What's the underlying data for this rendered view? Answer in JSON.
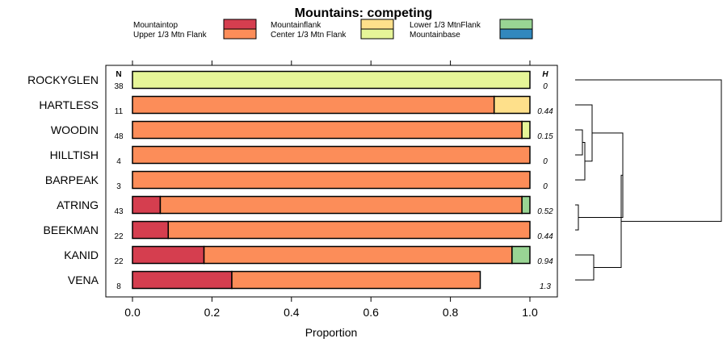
{
  "chart_data": {
    "type": "bar",
    "stacked": true,
    "orientation": "horizontal",
    "title": "Mountains: competing",
    "xlabel": "Proportion",
    "xlim": [
      0,
      1
    ],
    "xticks": [
      "0.0",
      "0.2",
      "0.4",
      "0.6",
      "0.8",
      "1.0"
    ],
    "column_headers": {
      "n": "N",
      "h": "H"
    },
    "legend": [
      {
        "label": "Mountaintop",
        "color": "#d53e4f"
      },
      {
        "label": "Upper 1/3 Mtn Flank",
        "color": "#fc8d59"
      },
      {
        "label": "Mountainflank",
        "color": "#fee08b"
      },
      {
        "label": "Center 1/3 Mtn Flank",
        "color": "#e6f598"
      },
      {
        "label": "Lower 1/3 MtnFlank",
        "color": "#99d594"
      },
      {
        "label": "Mountainbase",
        "color": "#3288bd"
      }
    ],
    "categories": [
      "ROCKYGLEN",
      "HARTLESS",
      "WOODIN",
      "HILLTISH",
      "BARPEAK",
      "ATRING",
      "BEEKMAN",
      "KANID",
      "VENA"
    ],
    "n_values": [
      "38",
      "11",
      "48",
      "4",
      "3",
      "43",
      "22",
      "22",
      "8"
    ],
    "h_values": [
      "0",
      "0.44",
      "0.15",
      "0",
      "0",
      "0.52",
      "0.44",
      "0.94",
      "1.3"
    ],
    "series": [
      {
        "name": "Mountaintop",
        "values": [
          0,
          0,
          0,
          0,
          0,
          0.07,
          0.09,
          0.18,
          0.25
        ]
      },
      {
        "name": "Upper 1/3 Mtn Flank",
        "values": [
          0,
          0.91,
          0.98,
          1.0,
          1.0,
          0.91,
          0.91,
          0.775,
          0.625
        ]
      },
      {
        "name": "Mountainflank",
        "values": [
          0,
          0.09,
          0,
          0,
          0,
          0,
          0,
          0,
          0
        ]
      },
      {
        "name": "Center 1/3 Mtn Flank",
        "values": [
          1.0,
          0,
          0.02,
          0,
          0,
          0,
          0,
          0,
          0
        ]
      },
      {
        "name": "Lower 1/3 MtnFlank",
        "values": [
          0,
          0,
          0,
          0,
          0,
          0.02,
          0,
          0.045,
          0
        ]
      },
      {
        "name": "Mountainbase",
        "values": [
          0,
          0,
          0,
          0,
          0,
          0,
          0,
          0,
          0
        ]
      }
    ]
  }
}
